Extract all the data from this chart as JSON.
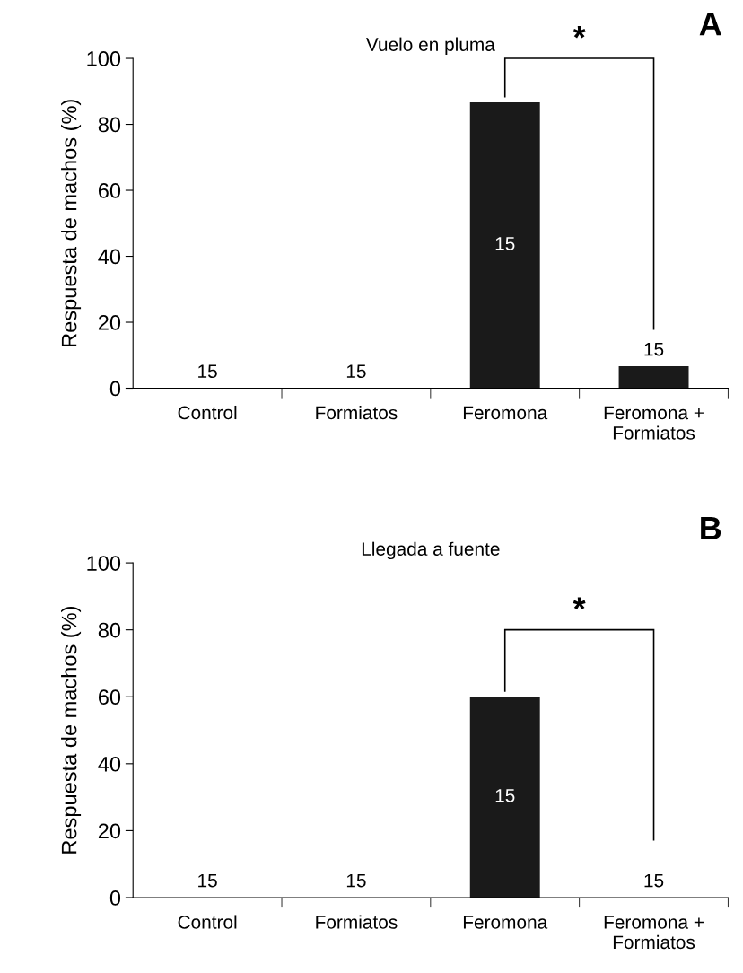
{
  "chart_data": [
    {
      "type": "bar",
      "title": "Vuelo en pluma",
      "ylabel": "Respuesta de machos (%)",
      "categories": [
        "Control",
        "Formiatos",
        "Feromona",
        "Feromona +\nFormiatos"
      ],
      "values": [
        0,
        0,
        86.7,
        6.7
      ],
      "color": "#1a1a1a",
      "ylim": [
        0,
        100
      ],
      "yticks": [
        0,
        20,
        40,
        60,
        80,
        100
      ],
      "grid": false,
      "legend": false,
      "annotations": [
        "A",
        "*",
        {
          "text": "15",
          "x": "Control",
          "y": 0
        },
        {
          "text": "15",
          "x": "Formiatos",
          "y": 0
        },
        "15",
        {
          "text": "15",
          "x": "Feromona +\nFormiatos",
          "y": 6.7
        }
      ]
    },
    {
      "type": "bar",
      "title": "Llegada a fuente",
      "ylabel": "Respuesta de machos (%)",
      "categories": [
        "Control",
        "Formiatos",
        "Feromona",
        "Feromona +\nFormiatos"
      ],
      "values": [
        0,
        0,
        60,
        0
      ],
      "color": "#1a1a1a",
      "ylim": [
        0,
        100
      ],
      "yticks": [
        0,
        20,
        40,
        60,
        80,
        100
      ],
      "grid": false,
      "legend": false,
      "annotations": [
        "B",
        "*",
        {
          "text": "15",
          "x": "Control",
          "y": 0
        },
        {
          "text": "15",
          "x": "Formiatos",
          "y": 0
        },
        "15",
        {
          "text": "15",
          "x": "Feromona +\nFormiatos",
          "y": 0
        }
      ]
    }
  ]
}
